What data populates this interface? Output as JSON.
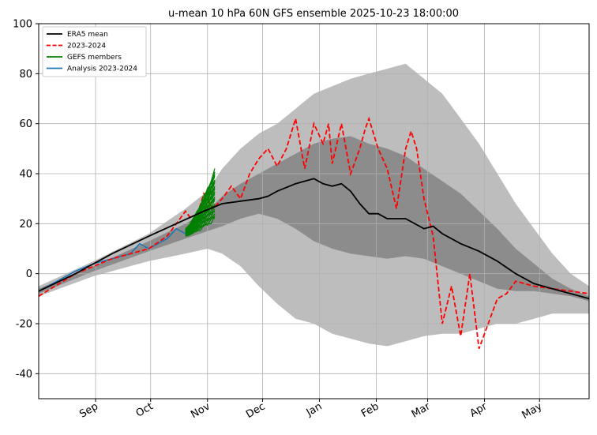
{
  "chart_data": {
    "type": "line",
    "title": "u-mean 10 hPa 60N GFS ensemble 2025-10-23 18:00:00",
    "xlabel": "",
    "ylabel": "",
    "ylim": [
      -50,
      100
    ],
    "xlim": [
      0,
      300
    ],
    "yticks": [
      -40,
      -20,
      0,
      20,
      40,
      60,
      80,
      100
    ],
    "xticks": [
      {
        "label": "Sep",
        "x": 31
      },
      {
        "label": "Oct",
        "x": 61
      },
      {
        "label": "Nov",
        "x": 92
      },
      {
        "label": "Dec",
        "x": 122
      },
      {
        "label": "Jan",
        "x": 153
      },
      {
        "label": "Feb",
        "x": 184
      },
      {
        "label": "Mar",
        "x": 212
      },
      {
        "label": "Apr",
        "x": 243
      },
      {
        "label": "May",
        "x": 273
      }
    ],
    "grid": true,
    "legend_position": "top-left",
    "bands": [
      {
        "role": "outer-envelope",
        "color": "#bdbdbd",
        "x": [
          0,
          30,
          60,
          80,
          92,
          100,
          110,
          120,
          130,
          140,
          150,
          160,
          170,
          180,
          190,
          200,
          210,
          220,
          230,
          240,
          250,
          260,
          270,
          280,
          290,
          300
        ],
        "upper": [
          -5,
          5,
          16,
          26,
          33,
          42,
          50,
          56,
          60,
          66,
          72,
          75,
          78,
          80,
          82,
          84,
          78,
          72,
          62,
          52,
          40,
          28,
          18,
          8,
          0,
          -5
        ],
        "lower": [
          -9,
          -1,
          5,
          8,
          10,
          8,
          3,
          -5,
          -12,
          -18,
          -20,
          -24,
          -26,
          -28,
          -29,
          -27,
          -25,
          -24,
          -24,
          -22,
          -20,
          -20,
          -18,
          -16,
          -16,
          -16
        ]
      },
      {
        "role": "inner-band",
        "color": "#8c8c8c",
        "x": [
          0,
          30,
          60,
          80,
          92,
          100,
          110,
          120,
          130,
          140,
          150,
          160,
          170,
          180,
          190,
          200,
          210,
          220,
          230,
          240,
          250,
          260,
          270,
          280,
          290,
          300
        ],
        "upper": [
          -6,
          3,
          13,
          20,
          25,
          31,
          36,
          40,
          44,
          48,
          52,
          54,
          55,
          52,
          50,
          47,
          42,
          37,
          32,
          25,
          18,
          10,
          4,
          -2,
          -6,
          -9
        ],
        "lower": [
          -8,
          1,
          9,
          14,
          17,
          19,
          22,
          24,
          22,
          18,
          13,
          10,
          8,
          7,
          6,
          7,
          6,
          3,
          0,
          -3,
          -6,
          -7,
          -7,
          -8,
          -9,
          -11
        ]
      }
    ],
    "series": [
      {
        "name": "ERA5 mean",
        "color": "#000000",
        "style": "solid",
        "x": [
          0,
          20,
          40,
          60,
          75,
          90,
          100,
          110,
          120,
          125,
          130,
          140,
          150,
          155,
          160,
          165,
          170,
          175,
          180,
          185,
          190,
          200,
          210,
          215,
          220,
          230,
          240,
          250,
          260,
          270,
          280,
          290,
          300
        ],
        "y": [
          -7,
          0,
          8,
          15,
          20,
          25,
          28,
          29,
          30,
          31,
          33,
          36,
          38,
          36,
          35,
          36,
          33,
          28,
          24,
          24,
          22,
          22,
          18,
          19,
          16,
          12,
          9,
          5,
          0,
          -4,
          -6,
          -8,
          -10
        ]
      },
      {
        "name": "2023-2024",
        "color": "#ff0000",
        "style": "dashed",
        "x": [
          0,
          20,
          40,
          60,
          70,
          80,
          85,
          90,
          95,
          100,
          105,
          110,
          115,
          120,
          125,
          130,
          135,
          140,
          145,
          150,
          155,
          158,
          160,
          165,
          170,
          175,
          178,
          180,
          185,
          190,
          195,
          200,
          203,
          206,
          210,
          215,
          220,
          225,
          230,
          235,
          240,
          245,
          250,
          255,
          260,
          270,
          280,
          290,
          300
        ],
        "y": [
          -9,
          0,
          6,
          10,
          15,
          25,
          20,
          32,
          26,
          30,
          35,
          30,
          40,
          46,
          50,
          43,
          50,
          62,
          42,
          60,
          52,
          60,
          44,
          60,
          40,
          50,
          58,
          62,
          50,
          42,
          26,
          50,
          57,
          50,
          30,
          15,
          -20,
          -5,
          -25,
          0,
          -30,
          -20,
          -10,
          -8,
          -3,
          -5,
          -6,
          -7,
          -8
        ]
      },
      {
        "name": "GEFS members",
        "color": "#008000",
        "style": "solid"
      },
      {
        "name": "Analysis 2023-2024",
        "color": "#1f77b4",
        "style": "solid",
        "x": [
          0,
          10,
          20,
          30,
          40,
          50,
          55,
          60,
          65,
          70,
          75,
          80,
          85,
          88
        ],
        "y": [
          -7,
          -3,
          1,
          4,
          6,
          8,
          12,
          10,
          12,
          14,
          18,
          16,
          20,
          22
        ]
      }
    ],
    "gefs_members": {
      "x_start": 80,
      "x_end": 96,
      "start_min": 15,
      "start_max": 18,
      "end_min": 22,
      "end_max": 41,
      "count": 31
    }
  }
}
